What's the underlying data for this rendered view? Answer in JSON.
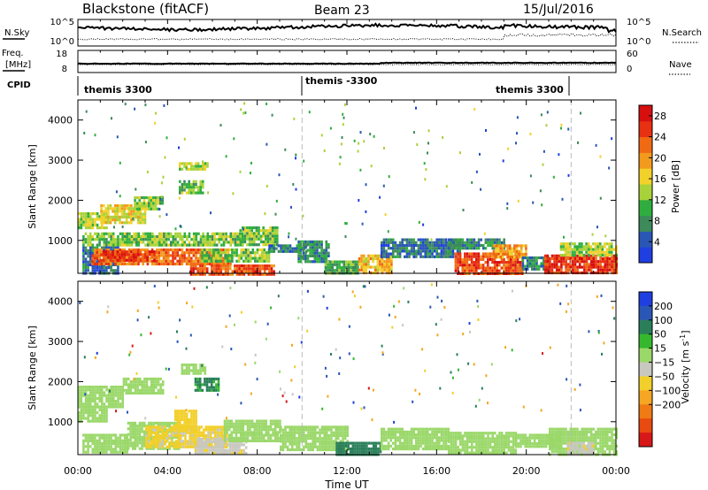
{
  "header": {
    "title": "Blackstone (fitACF)",
    "beam": "Beam 23",
    "date": "15/Jul/2016"
  },
  "noise_panel": {
    "left_label": "N.Sky",
    "right_label": "N.Search",
    "left_ticks": [
      "10^5",
      "10^0"
    ],
    "right_ticks": [
      "10^5",
      "10^0"
    ]
  },
  "freq_panel": {
    "left_label_line1": "Freq.",
    "left_label_line2": "[MHz]",
    "right_label": "Nave",
    "left_ticks": [
      "18",
      "8"
    ],
    "right_ticks": [
      "60",
      "0"
    ]
  },
  "cpid_panel": {
    "label": "CPID",
    "segments": [
      "themis 3300",
      "themis -3300",
      "themis 3300"
    ]
  },
  "colors": {
    "power_scale": [
      "#1f3fe0",
      "#2a57b5",
      "#3d8a5a",
      "#2fae3f",
      "#a9d23a",
      "#f2d12a",
      "#f29a1d",
      "#f06a14",
      "#e83012",
      "#d80f0f"
    ],
    "velocity_scale": [
      "#1f3fe0",
      "#2a57b5",
      "#2a7f5a",
      "#36b82e",
      "#9bd86a",
      "#c8c8c0",
      "#f2cf2a",
      "#f5a623",
      "#f07a14",
      "#e84a10",
      "#d81818"
    ],
    "ground_scatter": "#c8c8c0"
  },
  "chart_data": [
    {
      "type": "heatmap",
      "title": "Power",
      "xlabel": "",
      "ylabel": "Slant Range [km]",
      "colorbar_label": "Power [dB]",
      "x_ticks": [
        "00:00",
        "04:00",
        "08:00",
        "12:00",
        "16:00",
        "20:00",
        "00:00"
      ],
      "y_ticks": [
        1000,
        2000,
        3000,
        4000
      ],
      "xlim_hours": [
        0,
        24
      ],
      "ylim_km": [
        180,
        4500
      ],
      "colorbar_ticks": [
        4,
        8,
        12,
        16,
        20,
        24,
        28
      ],
      "colorbar_range": [
        0,
        30
      ],
      "mode_change_hours": [
        10,
        22
      ],
      "regions": [
        {
          "t0": 0.0,
          "t1": 1.3,
          "r0": 1300,
          "r1": 1700,
          "level": 14
        },
        {
          "t0": 1.0,
          "t1": 3.0,
          "r0": 1450,
          "r1": 1900,
          "level": 16
        },
        {
          "t0": 2.5,
          "t1": 3.8,
          "r0": 1750,
          "r1": 2100,
          "level": 12
        },
        {
          "t0": 0.2,
          "t1": 7.3,
          "r0": 850,
          "r1": 1200,
          "level": 12
        },
        {
          "t0": 0.2,
          "t1": 1.8,
          "r0": 180,
          "r1": 850,
          "level": 6
        },
        {
          "t0": 0.6,
          "t1": 6.8,
          "r0": 400,
          "r1": 800,
          "level": 22
        },
        {
          "t0": 1.0,
          "t1": 3.5,
          "r0": 500,
          "r1": 750,
          "level": 26
        },
        {
          "t0": 5.0,
          "t1": 8.7,
          "r0": 180,
          "r1": 400,
          "level": 24
        },
        {
          "t0": 5.5,
          "t1": 8.5,
          "r0": 450,
          "r1": 800,
          "level": 12
        },
        {
          "t0": 7.2,
          "t1": 8.9,
          "r0": 900,
          "r1": 1350,
          "level": 12
        },
        {
          "t0": 8.5,
          "t1": 10.2,
          "r0": 700,
          "r1": 900,
          "level": 6
        },
        {
          "t0": 9.8,
          "t1": 11.2,
          "r0": 500,
          "r1": 1000,
          "level": 8
        },
        {
          "t0": 11.0,
          "t1": 12.5,
          "r0": 200,
          "r1": 500,
          "level": 10
        },
        {
          "t0": 12.5,
          "t1": 14.0,
          "r0": 200,
          "r1": 650,
          "level": 18
        },
        {
          "t0": 13.5,
          "t1": 17.0,
          "r0": 600,
          "r1": 1050,
          "level": 6
        },
        {
          "t0": 16.5,
          "t1": 19.0,
          "r0": 800,
          "r1": 1050,
          "level": 8
        },
        {
          "t0": 16.8,
          "t1": 19.8,
          "r0": 200,
          "r1": 700,
          "level": 24
        },
        {
          "t0": 18.5,
          "t1": 20.0,
          "r0": 600,
          "r1": 900,
          "level": 20
        },
        {
          "t0": 19.8,
          "t1": 21.0,
          "r0": 250,
          "r1": 600,
          "level": 8
        },
        {
          "t0": 20.8,
          "t1": 24.0,
          "r0": 200,
          "r1": 650,
          "level": 26
        },
        {
          "t0": 21.5,
          "t1": 24.0,
          "r0": 650,
          "r1": 950,
          "level": 14
        },
        {
          "t0": 4.5,
          "t1": 5.6,
          "r0": 2200,
          "r1": 2500,
          "level": 12
        },
        {
          "t0": 4.5,
          "t1": 5.8,
          "r0": 2750,
          "r1": 2950,
          "level": 14
        }
      ]
    },
    {
      "type": "heatmap",
      "title": "Velocity",
      "xlabel": "Time UT",
      "ylabel": "Slant Range [km]",
      "colorbar_label": "Velocity [m s^-1]",
      "x_ticks": [
        "00:00",
        "04:00",
        "08:00",
        "12:00",
        "16:00",
        "20:00",
        "00:00"
      ],
      "y_ticks": [
        1000,
        2000,
        3000,
        4000
      ],
      "xlim_hours": [
        0,
        24
      ],
      "ylim_km": [
        180,
        4500
      ],
      "colorbar_ticks": [
        200,
        100,
        50,
        15,
        -15,
        -50,
        -100,
        -200
      ],
      "mode_change_hours": [
        10,
        22
      ],
      "regions": [
        {
          "t0": 0.0,
          "t1": 2.0,
          "r0": 1400,
          "r1": 1900,
          "vel": 0
        },
        {
          "t0": 2.0,
          "t1": 3.8,
          "r0": 1700,
          "r1": 2100,
          "vel": 0
        },
        {
          "t0": 0.0,
          "t1": 1.3,
          "r0": 1000,
          "r1": 1400,
          "vel": 0
        },
        {
          "t0": 0.2,
          "t1": 2.2,
          "r0": 250,
          "r1": 700,
          "vel": 0
        },
        {
          "t0": 2.2,
          "t1": 4.5,
          "r0": 300,
          "r1": 1000,
          "vel": 0
        },
        {
          "t0": 3.0,
          "t1": 6.6,
          "r0": 350,
          "r1": 900,
          "vel": -60
        },
        {
          "t0": 4.3,
          "t1": 5.3,
          "r0": 800,
          "r1": 1300,
          "vel": -70
        },
        {
          "t0": 5.2,
          "t1": 7.5,
          "r0": 200,
          "r1": 600,
          "vel": -40
        },
        {
          "t0": 6.5,
          "t1": 9.0,
          "r0": 500,
          "r1": 1050,
          "vel": 0
        },
        {
          "t0": 9.0,
          "t1": 12.0,
          "r0": 300,
          "r1": 900,
          "vel": 0
        },
        {
          "t0": 11.5,
          "t1": 13.5,
          "r0": 180,
          "r1": 500,
          "vel": 70
        },
        {
          "t0": 13.5,
          "t1": 16.5,
          "r0": 350,
          "r1": 850,
          "vel": 0
        },
        {
          "t0": 16.5,
          "t1": 19.5,
          "r0": 200,
          "r1": 750,
          "vel": 0
        },
        {
          "t0": 19.5,
          "t1": 21.5,
          "r0": 400,
          "r1": 700,
          "vel": 0
        },
        {
          "t0": 21.0,
          "t1": 24.0,
          "r0": 200,
          "r1": 850,
          "vel": 0
        },
        {
          "t0": 21.8,
          "t1": 23.0,
          "r0": 200,
          "r1": 500,
          "vel": -40
        },
        {
          "t0": 4.6,
          "t1": 5.7,
          "r0": 2200,
          "r1": 2450,
          "vel": 0
        },
        {
          "t0": 5.2,
          "t1": 6.3,
          "r0": 1800,
          "r1": 2100,
          "vel": 60
        }
      ]
    }
  ]
}
